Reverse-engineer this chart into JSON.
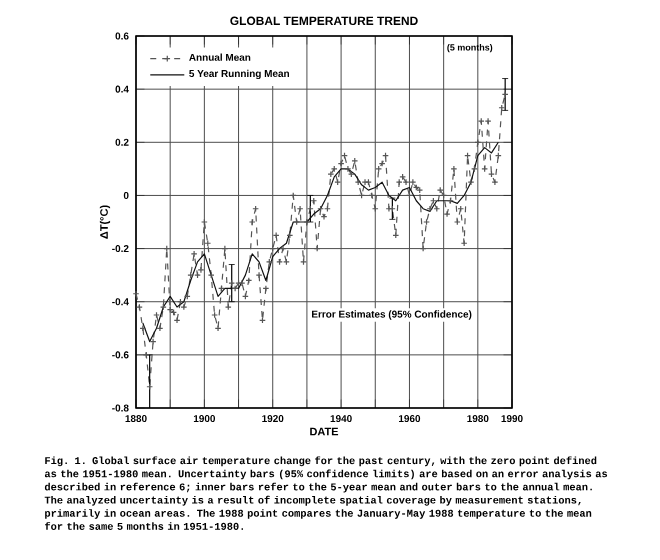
{
  "chart_data": {
    "type": "line",
    "title": "GLOBAL TEMPERATURE TREND",
    "xlabel": "DATE",
    "ylabel": "ΔT(°C)",
    "xlim": [
      1880,
      1990
    ],
    "xticks": [
      1880,
      {
        "value": 1890,
        "label": null
      },
      1900,
      {
        "value": 1910,
        "label": null
      },
      1920,
      {
        "value": 1930,
        "label": null
      },
      1940,
      {
        "value": 1950,
        "label": null
      },
      1960,
      {
        "value": 1970,
        "label": null
      },
      1980,
      1990
    ],
    "ylim": [
      -0.8,
      0.6
    ],
    "yticks": [
      -0.8,
      -0.6,
      -0.4,
      -0.2,
      0,
      0.2,
      0.4,
      0.6
    ],
    "grid": true,
    "legend": "top left",
    "series": [
      {
        "name": "Annual Mean",
        "color": "#555555",
        "marker": "cross",
        "line_style": "dashed",
        "x": [
          1880,
          1881,
          1882,
          1883,
          1884,
          1885,
          1886,
          1887,
          1888,
          1889,
          1890,
          1891,
          1892,
          1893,
          1894,
          1895,
          1896,
          1897,
          1898,
          1899,
          1900,
          1901,
          1902,
          1903,
          1904,
          1905,
          1906,
          1907,
          1908,
          1909,
          1910,
          1911,
          1912,
          1913,
          1914,
          1915,
          1916,
          1917,
          1918,
          1919,
          1920,
          1921,
          1922,
          1923,
          1924,
          1925,
          1926,
          1927,
          1928,
          1929,
          1930,
          1931,
          1932,
          1933,
          1934,
          1935,
          1936,
          1937,
          1938,
          1939,
          1940,
          1941,
          1942,
          1943,
          1944,
          1945,
          1946,
          1947,
          1948,
          1949,
          1950,
          1951,
          1952,
          1953,
          1954,
          1955,
          1956,
          1957,
          1958,
          1959,
          1960,
          1961,
          1962,
          1963,
          1964,
          1965,
          1966,
          1967,
          1968,
          1969,
          1970,
          1971,
          1972,
          1973,
          1974,
          1975,
          1976,
          1977,
          1978,
          1979,
          1980,
          1981,
          1982,
          1983,
          1984,
          1985,
          1986,
          1987,
          1988
        ],
        "values": [
          -0.37,
          -0.42,
          -0.5,
          -0.6,
          -0.72,
          -0.55,
          -0.45,
          -0.5,
          -0.42,
          -0.2,
          -0.43,
          -0.44,
          -0.47,
          -0.4,
          -0.42,
          -0.38,
          -0.3,
          -0.22,
          -0.3,
          -0.28,
          -0.1,
          -0.18,
          -0.3,
          -0.45,
          -0.5,
          -0.35,
          -0.2,
          -0.42,
          -0.33,
          -0.35,
          -0.33,
          -0.33,
          -0.38,
          -0.32,
          -0.1,
          -0.05,
          -0.3,
          -0.47,
          -0.35,
          -0.25,
          -0.2,
          -0.15,
          -0.25,
          -0.2,
          -0.25,
          -0.15,
          0.0,
          -0.1,
          -0.05,
          -0.25,
          -0.1,
          -0.05,
          -0.02,
          -0.2,
          -0.05,
          -0.08,
          -0.05,
          0.08,
          0.1,
          0.05,
          0.12,
          0.15,
          0.1,
          0.08,
          0.13,
          0.05,
          0.0,
          0.05,
          0.05,
          0.0,
          -0.05,
          0.1,
          0.12,
          0.15,
          -0.05,
          -0.05,
          -0.15,
          0.05,
          0.07,
          0.05,
          0.0,
          0.05,
          0.03,
          0.02,
          -0.2,
          -0.1,
          -0.05,
          -0.02,
          -0.05,
          0.02,
          0.0,
          -0.07,
          -0.02,
          0.1,
          -0.1,
          -0.05,
          -0.18,
          0.15,
          0.05,
          0.1,
          0.2,
          0.28,
          0.1,
          0.28,
          0.08,
          0.05,
          0.15,
          0.33,
          0.38
        ],
        "errors": [
          null,
          null,
          null,
          null,
          0.12,
          null,
          null,
          null,
          null,
          null,
          null,
          null,
          null,
          null,
          null,
          null,
          null,
          null,
          null,
          null,
          null,
          null,
          null,
          null,
          null,
          null,
          null,
          null,
          0.07,
          null,
          null,
          null,
          null,
          null,
          null,
          null,
          null,
          null,
          null,
          null,
          null,
          null,
          null,
          null,
          null,
          null,
          null,
          null,
          null,
          null,
          null,
          0.05,
          null,
          null,
          null,
          null,
          null,
          null,
          null,
          null,
          null,
          null,
          null,
          null,
          null,
          null,
          null,
          null,
          null,
          null,
          null,
          null,
          null,
          null,
          null,
          0.04,
          null,
          null,
          null,
          null,
          null,
          null,
          null,
          null,
          null,
          null,
          null,
          null,
          null,
          null,
          null,
          null,
          null,
          null,
          null,
          null,
          null,
          null,
          null,
          null,
          null,
          null,
          null,
          null,
          null,
          null,
          null,
          null,
          0.06
        ]
      },
      {
        "name": "5 Year Running Mean",
        "color": "#111111",
        "marker": "none",
        "line_style": "solid",
        "x": [
          1882,
          1884,
          1886,
          1888,
          1890,
          1892,
          1894,
          1896,
          1898,
          1900,
          1902,
          1904,
          1906,
          1908,
          1910,
          1912,
          1914,
          1916,
          1918,
          1920,
          1922,
          1924,
          1926,
          1928,
          1930,
          1932,
          1934,
          1936,
          1938,
          1940,
          1942,
          1944,
          1946,
          1948,
          1950,
          1952,
          1954,
          1956,
          1958,
          1960,
          1962,
          1964,
          1966,
          1968,
          1970,
          1972,
          1974,
          1976,
          1978,
          1980,
          1982,
          1984,
          1986
        ],
        "values": [
          -0.48,
          -0.55,
          -0.5,
          -0.42,
          -0.38,
          -0.42,
          -0.4,
          -0.32,
          -0.25,
          -0.22,
          -0.3,
          -0.38,
          -0.35,
          -0.35,
          -0.35,
          -0.3,
          -0.22,
          -0.25,
          -0.32,
          -0.23,
          -0.2,
          -0.18,
          -0.1,
          -0.1,
          -0.1,
          -0.07,
          -0.05,
          0.0,
          0.07,
          0.1,
          0.1,
          0.08,
          0.04,
          0.02,
          0.03,
          0.05,
          0.0,
          -0.02,
          0.02,
          0.03,
          -0.02,
          -0.05,
          -0.06,
          -0.02,
          -0.02,
          -0.02,
          -0.03,
          0.0,
          0.05,
          0.15,
          0.18,
          0.16,
          0.2
        ]
      }
    ],
    "annotations": [
      "(5 months)",
      "Error Estimates (95% Confidence)",
      "Fig. 1.  Global surface air temperature change for the past century, with the zero point defined as the 1951-1980 mean.  Uncertainty bars (95% confidence limits) are based on an error analysis as described in reference 6; inner bars refer to the 5-year mean and outer bars to the annual mean.  The analyzed uncertainty is a result of incomplete spatial coverage by measurement stations, primarily in ocean areas.  The 1988 point compares the January-May 1988 temperature to the mean for the same 5 months in 1951-1980."
    ]
  }
}
